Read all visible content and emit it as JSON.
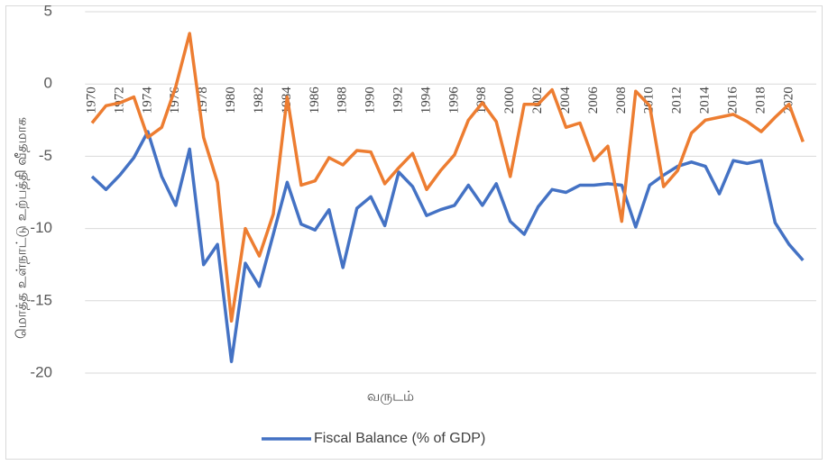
{
  "chart_data": {
    "type": "line",
    "x_label": "வருடம்",
    "y_label": "மொத்த உள்நாட்டு உற்பத்தி வீதமாக",
    "x": [
      1970,
      1971,
      1972,
      1973,
      1974,
      1975,
      1976,
      1977,
      1978,
      1979,
      1980,
      1981,
      1982,
      1983,
      1984,
      1985,
      1986,
      1987,
      1988,
      1989,
      1990,
      1991,
      1992,
      1993,
      1994,
      1995,
      1996,
      1997,
      1998,
      1999,
      2000,
      2001,
      2002,
      2003,
      2004,
      2005,
      2006,
      2007,
      2008,
      2009,
      2010,
      2011,
      2012,
      2013,
      2014,
      2015,
      2016,
      2017,
      2018,
      2019,
      2020,
      2021
    ],
    "series": [
      {
        "name": "Fiscal Balance (% of GDP)",
        "color": "#4472c4",
        "values": [
          -6.4,
          -7.3,
          -6.3,
          -5.1,
          -3.3,
          -6.4,
          -8.4,
          -4.5,
          -12.5,
          -11.1,
          -19.2,
          -12.4,
          -14.0,
          -10.4,
          -6.8,
          -9.7,
          -10.1,
          -8.7,
          -12.7,
          -8.6,
          -7.8,
          -9.8,
          -6.1,
          -7.1,
          -9.1,
          -8.7,
          -8.4,
          -7.0,
          -8.4,
          -6.9,
          -9.5,
          -10.4,
          -8.5,
          -7.3,
          -7.5,
          -7.0,
          -7.0,
          -6.9,
          -7.0,
          -9.9,
          -7.0,
          -6.3,
          -5.7,
          -5.4,
          -5.7,
          -7.6,
          -5.3,
          -5.5,
          -5.3,
          -9.6,
          -11.1,
          -12.2
        ]
      },
      {
        "color": "#ed7d31",
        "values": [
          -2.7,
          -1.5,
          -1.3,
          -0.9,
          -3.7,
          -3.0,
          -0.2,
          3.5,
          -3.7,
          -6.8,
          -16.4,
          -10.0,
          -11.9,
          -9.0,
          -0.9,
          -7.0,
          -6.7,
          -5.1,
          -5.6,
          -4.6,
          -4.7,
          -6.9,
          -5.8,
          -4.8,
          -7.3,
          -6.0,
          -4.9,
          -2.5,
          -1.3,
          -2.6,
          -6.4,
          -1.4,
          -1.4,
          -0.4,
          -3.0,
          -2.7,
          -5.3,
          -4.3,
          -9.5,
          -0.5,
          -1.5,
          -7.1,
          -6.0,
          -3.4,
          -2.5,
          -2.3,
          -2.1,
          -2.6,
          -3.3,
          -2.3,
          -1.4,
          -4.0
        ]
      }
    ],
    "xlim": [
      1969.5,
      2021.5
    ],
    "xticks": [
      1970,
      1972,
      1974,
      1976,
      1978,
      1980,
      1982,
      1984,
      1986,
      1988,
      1990,
      1992,
      1994,
      1996,
      1998,
      2000,
      2002,
      2004,
      2006,
      2008,
      2010,
      2012,
      2014,
      2016,
      2018,
      2020
    ],
    "ylim": [
      -20,
      5
    ],
    "yticks": [
      -20,
      -15,
      -10,
      -5,
      0,
      5
    ],
    "grid": true,
    "legend": "bottom"
  }
}
